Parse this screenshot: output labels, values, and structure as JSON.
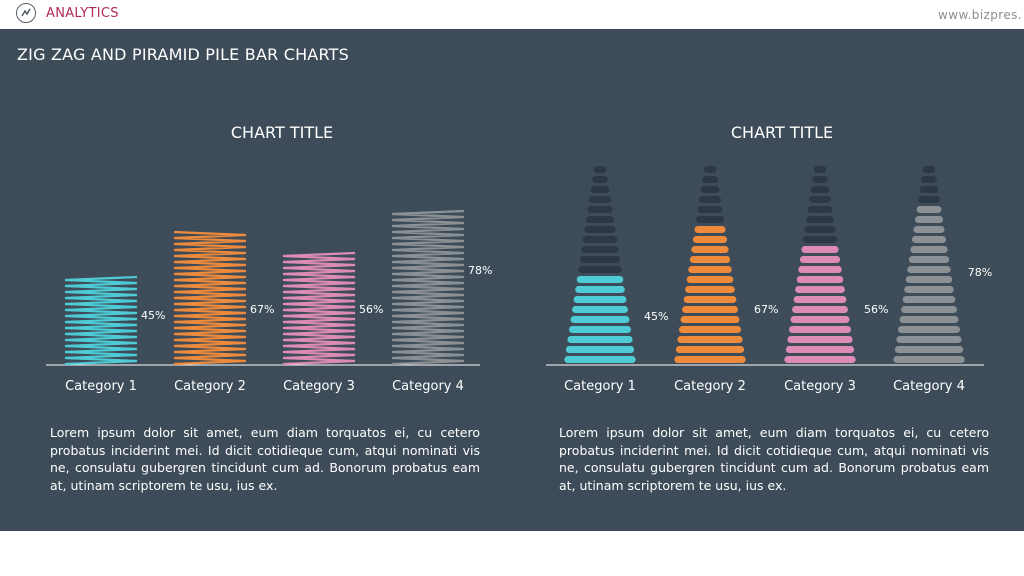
{
  "header": {
    "brand": "ANALYTICS",
    "site": "www.bizpres."
  },
  "slide": {
    "title": "ZIG ZAG AND PIRAMID PILE BAR CHARTS"
  },
  "colors": {
    "panel": "#3d4c58",
    "cyan": "#4ecbd4",
    "orange": "#ee8a3c",
    "pink": "#de8cb6",
    "gray": "#8b9195",
    "ghost": "#2c3944"
  },
  "chart_data": [
    {
      "type": "bar",
      "style": "zigzag",
      "title": "CHART TITLE",
      "categories": [
        "Category 1",
        "Category 2",
        "Category 3",
        "Category 4"
      ],
      "values": [
        45,
        67,
        56,
        78
      ],
      "value_labels": [
        "45%",
        "67%",
        "56%",
        "78%"
      ],
      "ylim": [
        0,
        100
      ],
      "colors": [
        "#4ecbd4",
        "#ee8a3c",
        "#de8cb6",
        "#8b9195"
      ],
      "grid": false
    },
    {
      "type": "bar",
      "style": "pyramid-pile",
      "title": "CHART TITLE",
      "categories": [
        "Category 1",
        "Category 2",
        "Category 3",
        "Category 4"
      ],
      "values": [
        45,
        67,
        56,
        78
      ],
      "value_labels": [
        "45%",
        "67%",
        "56%",
        "78%"
      ],
      "ylim": [
        0,
        100
      ],
      "colors": [
        "#4ecbd4",
        "#ee8a3c",
        "#de8cb6",
        "#8b9195"
      ],
      "grid": false
    }
  ],
  "descriptions": [
    "Lorem ipsum dolor sit amet, eum diam torquatos ei, cu cetero probatus inciderint mei. Id dicit cotidieque cum, atqui nominati vis ne, consulatu gubergren tincidunt cum ad. Bonorum probatus eam at, utinam scriptorem te usu, ius ex.",
    "Lorem ipsum dolor sit amet, eum diam torquatos ei, cu cetero probatus inciderint mei. Id dicit cotidieque cum, atqui nominati vis ne, consulatu gubergren tincidunt cum ad. Bonorum probatus eam at, utinam scriptorem te usu, ius ex."
  ]
}
